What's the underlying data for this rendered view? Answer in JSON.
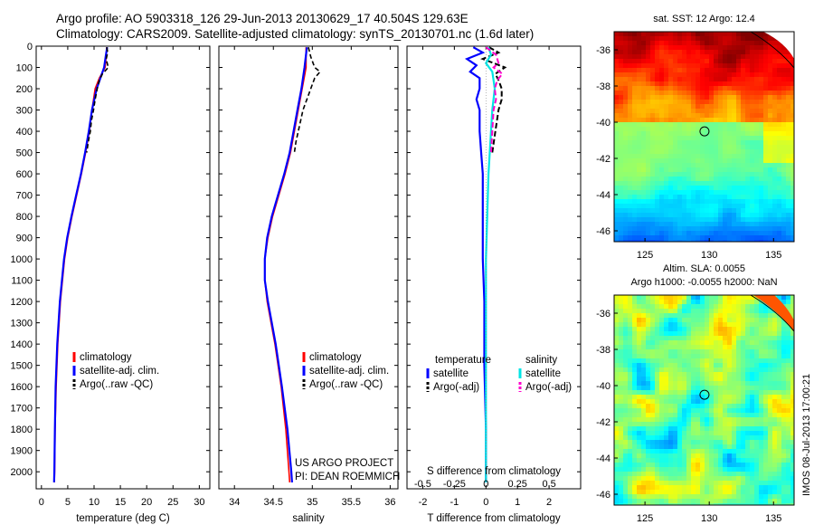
{
  "header": {
    "line1": "Argo profile: AO 5903318_126 29-Jun-2013 20130629_17 40.504S 129.63E",
    "line2": "Climatology: CARS2009. Satellite-adjusted climatology: synTS_20130701.nc (1.6d later)"
  },
  "stamp": "IMOS 08-Jul-2013 17:00:21",
  "project": {
    "line1": "US ARGO PROJECT",
    "line2": "PI: DEAN ROEMMICH"
  },
  "colors": {
    "climatology": "#ff0000",
    "satellite": "#0000ff",
    "argo": "#000000",
    "sat_salinity": "#00e5e5",
    "argo_salinity": "#ff00cc"
  },
  "chart_data": [
    {
      "type": "line",
      "xlabel": "temperature (deg C)",
      "xlim": [
        -1,
        32
      ],
      "ylim": [
        2080,
        0
      ],
      "xticks": [
        0,
        5,
        10,
        15,
        20,
        25,
        30
      ],
      "yticks": [
        0,
        100,
        200,
        300,
        400,
        500,
        600,
        700,
        800,
        900,
        1000,
        1100,
        1200,
        1300,
        1400,
        1500,
        1600,
        1700,
        1800,
        1900,
        2000
      ],
      "legend": [
        "climatology",
        "satellite-adj. clim.",
        "Argo(..raw -QC)"
      ],
      "series": [
        {
          "name": "climatology",
          "depth": [
            5,
            50,
            100,
            150,
            200,
            300,
            400,
            500,
            600,
            700,
            800,
            900,
            1000,
            1200,
            1400,
            1600,
            1800,
            2000,
            2050
          ],
          "values": [
            12.4,
            12.3,
            12.1,
            11.0,
            10.2,
            9.6,
            9.1,
            8.4,
            7.6,
            6.7,
            5.8,
            5.0,
            4.4,
            3.6,
            3.1,
            2.8,
            2.6,
            2.5,
            2.45
          ]
        },
        {
          "name": "satellite-adj. clim.",
          "depth": [
            5,
            50,
            100,
            150,
            200,
            300,
            400,
            500,
            600,
            700,
            800,
            900,
            1000,
            1200,
            1400,
            1600,
            1800,
            2000,
            2050
          ],
          "values": [
            12.5,
            12.2,
            11.9,
            11.2,
            10.5,
            9.6,
            9.0,
            8.3,
            7.5,
            6.6,
            5.7,
            4.9,
            4.3,
            3.5,
            3.0,
            2.7,
            2.55,
            2.45,
            2.4
          ]
        },
        {
          "name": "Argo(..raw -QC)",
          "depth": [
            5,
            30,
            60,
            100,
            130,
            160,
            200,
            250,
            300,
            350,
            400,
            450,
            500
          ],
          "values": [
            12.4,
            12.6,
            12.3,
            12.7,
            11.6,
            11.0,
            10.6,
            10.2,
            9.9,
            9.5,
            9.3,
            8.9,
            8.6
          ]
        }
      ]
    },
    {
      "type": "line",
      "xlabel": "salinity",
      "xlim": [
        33.8,
        36.1
      ],
      "ylim": [
        2080,
        0
      ],
      "xticks": [
        34,
        34.5,
        35,
        35.5,
        36
      ],
      "legend": [
        "climatology",
        "satellite-adj. clim.",
        "Argo(..raw -QC)"
      ],
      "series": [
        {
          "name": "climatology",
          "depth": [
            5,
            100,
            200,
            300,
            400,
            500,
            600,
            700,
            800,
            900,
            1000,
            1100,
            1200,
            1400,
            1600,
            1800,
            2000,
            2050
          ],
          "values": [
            34.92,
            34.92,
            34.87,
            34.82,
            34.77,
            34.72,
            34.65,
            34.57,
            34.49,
            34.43,
            34.39,
            34.39,
            34.42,
            34.52,
            34.6,
            34.66,
            34.7,
            34.71
          ]
        },
        {
          "name": "satellite-adj. clim.",
          "depth": [
            5,
            100,
            200,
            300,
            400,
            500,
            600,
            700,
            800,
            900,
            1000,
            1100,
            1200,
            1400,
            1600,
            1800,
            2000,
            2050
          ],
          "values": [
            34.93,
            34.9,
            34.86,
            34.81,
            34.76,
            34.71,
            34.64,
            34.56,
            34.48,
            34.42,
            34.39,
            34.39,
            34.43,
            34.53,
            34.61,
            34.68,
            34.73,
            34.74
          ]
        },
        {
          "name": "Argo(..raw -QC)",
          "depth": [
            5,
            50,
            100,
            120,
            150,
            200,
            250,
            300,
            350,
            400,
            450,
            500
          ],
          "values": [
            34.95,
            34.98,
            35.03,
            35.1,
            35.03,
            34.98,
            34.93,
            34.88,
            34.85,
            34.82,
            34.79,
            34.77
          ]
        }
      ]
    },
    {
      "type": "line",
      "xlabel": "T difference from climatology",
      "xlabel_top": "S difference from climatology",
      "xlim": [
        -2.5,
        3
      ],
      "ylim": [
        2080,
        0
      ],
      "xticks": [
        -2,
        -1,
        0,
        1,
        2
      ],
      "xticks_top": [
        "-0.5",
        "-0.25",
        "0",
        "0.25",
        "0.5"
      ],
      "legend_left_title": "temperature",
      "legend_right_title": "salinity",
      "legend_left": [
        "satellite",
        "Argo(-adj)"
      ],
      "legend_right": [
        "satellite",
        "Argo(-adj)"
      ],
      "series": [
        {
          "name": "temperature satellite",
          "depth": [
            5,
            30,
            60,
            90,
            120,
            150,
            200,
            250,
            300,
            400,
            500,
            600,
            800,
            1000,
            1200,
            1500,
            1800,
            2050
          ],
          "values": [
            -0.4,
            -0.1,
            -0.6,
            -0.3,
            -0.5,
            -0.2,
            -0.2,
            -0.3,
            -0.2,
            -0.2,
            -0.15,
            -0.1,
            -0.1,
            -0.1,
            -0.05,
            -0.05,
            0,
            0
          ]
        },
        {
          "name": "temperature Argo(-adj)",
          "depth": [
            5,
            30,
            60,
            100,
            130,
            160,
            200,
            250,
            300,
            400,
            500
          ],
          "values": [
            0.1,
            0.4,
            -0.1,
            0.6,
            0.3,
            0.4,
            0.5,
            0.5,
            0.4,
            0.3,
            0.2
          ]
        },
        {
          "name": "salinity satellite",
          "depth": [
            5,
            40,
            80,
            120,
            160,
            200,
            300,
            400,
            600,
            800,
            1000,
            1300,
            1600,
            2050
          ],
          "values": [
            0.02,
            0.04,
            0.0,
            0.05,
            0.06,
            0.07,
            0.05,
            0.04,
            0.02,
            0.01,
            0.0,
            0.0,
            0.0,
            0.0
          ]
        },
        {
          "name": "salinity Argo(-adj)",
          "depth": [
            5,
            40,
            80,
            100,
            130,
            160,
            200,
            250,
            300,
            400,
            500
          ],
          "values": [
            0.0,
            0.08,
            0.1,
            0.06,
            0.13,
            0.09,
            0.07,
            0.08,
            0.06,
            0.05,
            0.04
          ]
        }
      ]
    },
    {
      "type": "heatmap",
      "title": "sat. SST: 12 Argo: 12.4",
      "xlim": [
        122.6,
        136.6
      ],
      "ylim": [
        -46.6,
        -35.0
      ],
      "xticks": [
        125,
        130,
        135
      ],
      "yticks": [
        -36,
        -38,
        -40,
        -42,
        -44,
        -46
      ],
      "marker": {
        "lon": 129.63,
        "lat": -40.504
      }
    },
    {
      "type": "heatmap",
      "title": "Altim. SLA: 0.0055",
      "subtitle": "Argo h1000: -0.0055 h2000: NaN",
      "xlim": [
        122.6,
        136.6
      ],
      "ylim": [
        -46.6,
        -35.0
      ],
      "xticks": [
        125,
        130,
        135
      ],
      "yticks": [
        -36,
        -38,
        -40,
        -42,
        -44,
        -46
      ],
      "marker": {
        "lon": 129.63,
        "lat": -40.504
      }
    }
  ]
}
